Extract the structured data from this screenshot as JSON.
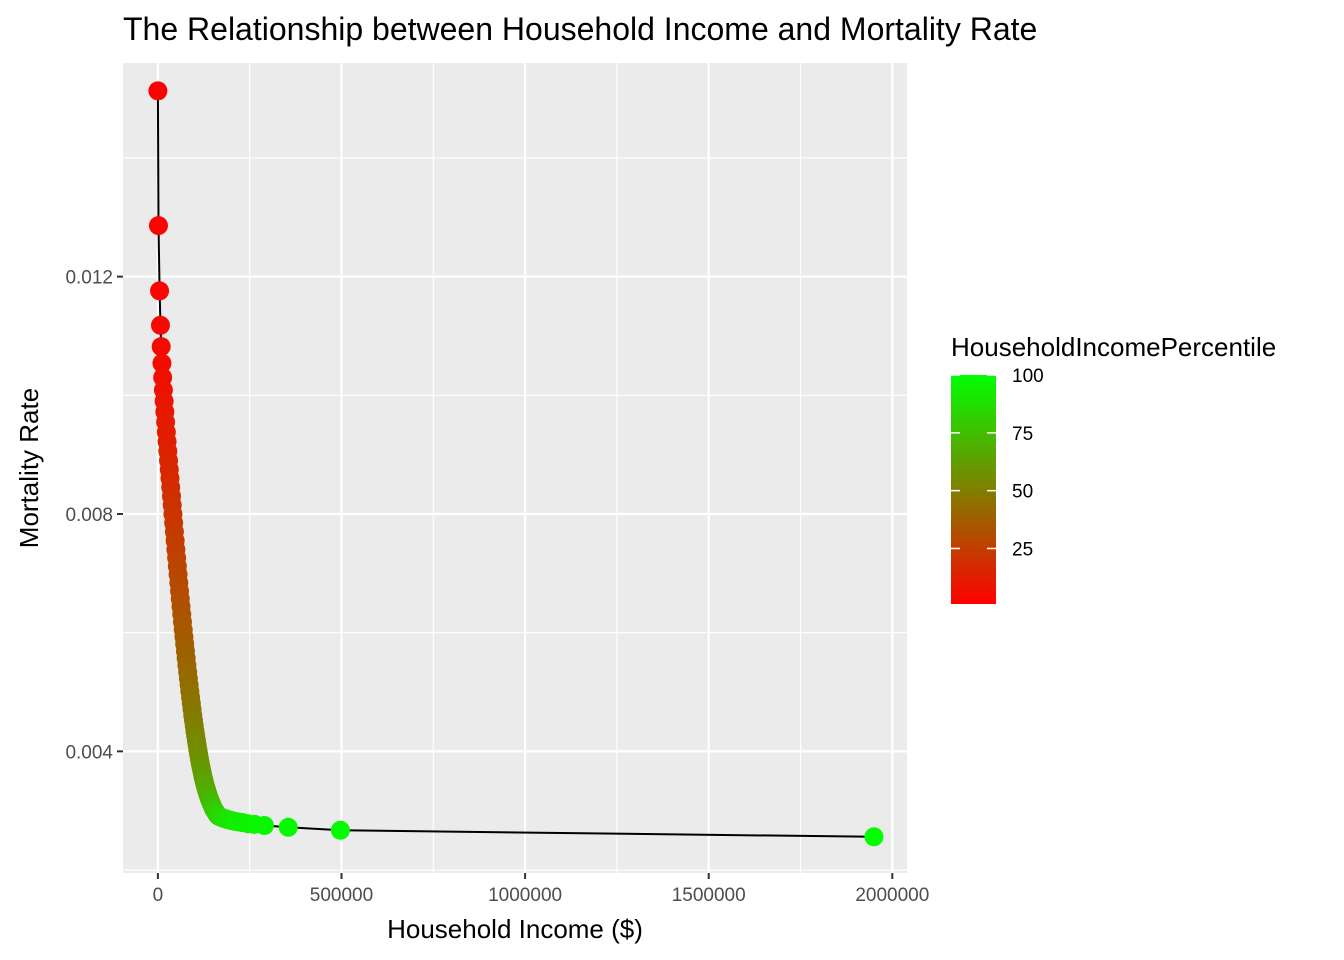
{
  "chart_data": {
    "type": "scatter",
    "title": "The Relationship between Household Income and Mortality Rate",
    "xlabel": "Household Income ($)",
    "ylabel": "Mortality Rate",
    "xlim": [
      -95000,
      2040000
    ],
    "ylim": [
      0.00195,
      0.0156
    ],
    "x_ticks": [
      0,
      500000,
      1000000,
      1500000,
      2000000
    ],
    "x_tick_labels": [
      "0",
      "500000",
      "1000000",
      "1500000",
      "2000000"
    ],
    "y_ticks": [
      0.004,
      0.008,
      0.012
    ],
    "y_tick_labels": [
      "0.004",
      "0.008",
      "0.012"
    ],
    "grid": true,
    "connecting_line": true,
    "line_color": "#000000",
    "panel_background": "#ebebeb",
    "legend": {
      "title": "HouseholdIncomePercentile",
      "placement": "right",
      "min": 1,
      "max": 100,
      "ticks": [
        25,
        50,
        75,
        100
      ],
      "tick_labels": [
        "25",
        "50",
        "75",
        "100"
      ],
      "low_color": "#ff0000",
      "high_color": "#00ff00"
    },
    "series": [
      {
        "color_by": "HouseholdIncomePercentile",
        "percentile": [
          1,
          2,
          3,
          4,
          5,
          6,
          7,
          8,
          9,
          10,
          11,
          12,
          13,
          14,
          15,
          16,
          17,
          18,
          19,
          20,
          21,
          22,
          23,
          24,
          25,
          26,
          27,
          28,
          29,
          30,
          31,
          32,
          33,
          34,
          35,
          36,
          37,
          38,
          39,
          40,
          41,
          42,
          43,
          44,
          45,
          46,
          47,
          48,
          49,
          50,
          51,
          52,
          53,
          54,
          55,
          56,
          57,
          58,
          59,
          60,
          61,
          62,
          63,
          64,
          65,
          66,
          67,
          68,
          69,
          70,
          71,
          72,
          73,
          74,
          75,
          76,
          77,
          78,
          79,
          80,
          81,
          82,
          83,
          84,
          85,
          86,
          87,
          88,
          89,
          90,
          91,
          92,
          93,
          94,
          95,
          96,
          97,
          98,
          99,
          100
        ],
        "x": [
          0,
          1600,
          4600,
          7000,
          9000,
          11000,
          13000,
          15000,
          17000,
          19000,
          21000,
          23000,
          25000,
          27000,
          29000,
          31000,
          33000,
          35000,
          37000,
          39000,
          41000,
          43000,
          45000,
          47000,
          49000,
          51000,
          53000,
          55000,
          57000,
          59000,
          61000,
          63000,
          65000,
          67000,
          69000,
          71000,
          73000,
          75000,
          77000,
          79000,
          81000,
          83000,
          85000,
          87000,
          89000,
          91000,
          93000,
          95000,
          97000,
          99000,
          101000,
          103000,
          105000,
          107000,
          109000,
          111000,
          113000,
          115000,
          117000,
          119000,
          121000,
          123000,
          125000,
          127000,
          129000,
          131000,
          133000,
          135000,
          137000,
          139000,
          141000,
          143000,
          145000,
          147000,
          149000,
          151000,
          153000,
          155000,
          157000,
          159000,
          161000,
          163000,
          165000,
          168000,
          172000,
          176000,
          180000,
          185000,
          190000,
          196000,
          202000,
          210000,
          220000,
          230000,
          245000,
          263000,
          290000,
          355000,
          497000,
          1950000
        ],
        "y": [
          0.01513,
          0.01286,
          0.01176,
          0.01118,
          0.01082,
          0.01054,
          0.0103,
          0.01009,
          0.0099,
          0.00972,
          0.00955,
          0.00938,
          0.00922,
          0.00906,
          0.0089,
          0.00875,
          0.0086,
          0.00845,
          0.0083,
          0.00815,
          0.008,
          0.00785,
          0.0077,
          0.00755,
          0.0074,
          0.00726,
          0.00712,
          0.00698,
          0.00684,
          0.0067,
          0.00657,
          0.00644,
          0.00631,
          0.00618,
          0.00605,
          0.00593,
          0.00581,
          0.00569,
          0.00557,
          0.00545,
          0.00534,
          0.00523,
          0.00512,
          0.00501,
          0.00491,
          0.00481,
          0.00471,
          0.00461,
          0.00452,
          0.00443,
          0.00434,
          0.00426,
          0.00418,
          0.0041,
          0.00402,
          0.00395,
          0.00388,
          0.00381,
          0.00375,
          0.00369,
          0.00363,
          0.00357,
          0.00352,
          0.00347,
          0.00342,
          0.00338,
          0.00334,
          0.0033,
          0.00326,
          0.00322,
          0.00319,
          0.00316,
          0.00313,
          0.0031,
          0.00307,
          0.00304,
          0.00302,
          0.003,
          0.00298,
          0.00296,
          0.00294,
          0.00292,
          0.00291,
          0.0029,
          0.00289,
          0.00288,
          0.00287,
          0.00286,
          0.00285,
          0.00284,
          0.00283,
          0.00282,
          0.00281,
          0.0028,
          0.00278,
          0.00277,
          0.00275,
          0.00272,
          0.00267,
          0.00256
        ]
      }
    ]
  }
}
